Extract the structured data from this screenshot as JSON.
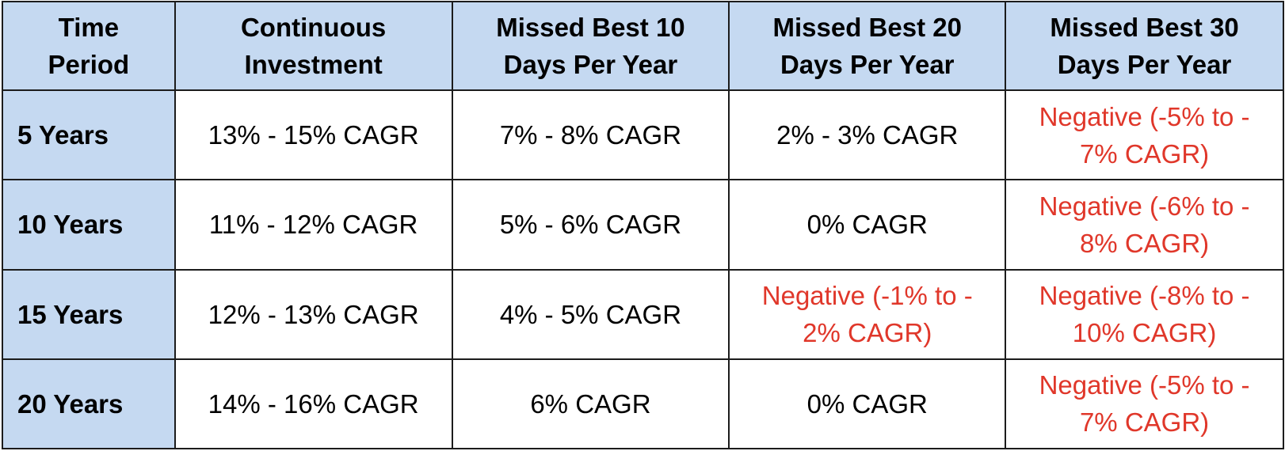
{
  "headers": [
    {
      "line1": "Time",
      "line2": "Period"
    },
    {
      "line1": "Continuous",
      "line2": "Investment"
    },
    {
      "line1": "Missed Best 10",
      "line2": "Days Per Year"
    },
    {
      "line1": "Missed Best 20",
      "line2": "Days Per Year"
    },
    {
      "line1": "Missed Best 30",
      "line2": "Days Per Year"
    }
  ],
  "rows": [
    {
      "period": "5 Years",
      "continuous": "13% - 15% CAGR",
      "missed10": {
        "line1": "7% - 8% CAGR",
        "line2": ""
      },
      "missed20": {
        "line1": "2% - 3% CAGR",
        "line2": ""
      },
      "missed30": {
        "line1": "Negative (-5% to -",
        "line2": "7% CAGR)"
      }
    },
    {
      "period": "10 Years",
      "continuous": "11% - 12% CAGR",
      "missed10": {
        "line1": "5% - 6% CAGR",
        "line2": ""
      },
      "missed20": {
        "line1": "0% CAGR",
        "line2": ""
      },
      "missed30": {
        "line1": "Negative (-6% to -",
        "line2": "8% CAGR)"
      }
    },
    {
      "period": "15 Years",
      "continuous": "12% - 13% CAGR",
      "missed10": {
        "line1": "4% - 5% CAGR",
        "line2": ""
      },
      "missed20": {
        "line1": "Negative (-1% to -",
        "line2": "2% CAGR)"
      },
      "missed30": {
        "line1": "Negative (-8% to -",
        "line2": "10% CAGR)"
      }
    },
    {
      "period": "20 Years",
      "continuous": "14% - 16% CAGR",
      "missed10": {
        "line1": "6% CAGR",
        "line2": ""
      },
      "missed20": {
        "line1": "0% CAGR",
        "line2": ""
      },
      "missed30": {
        "line1": "Negative (-5% to -",
        "line2": "7% CAGR)"
      }
    }
  ],
  "colors": {
    "header_bg": "#c5d9f1",
    "negative_text": "#e0372a",
    "border": "#1c1c1c"
  }
}
